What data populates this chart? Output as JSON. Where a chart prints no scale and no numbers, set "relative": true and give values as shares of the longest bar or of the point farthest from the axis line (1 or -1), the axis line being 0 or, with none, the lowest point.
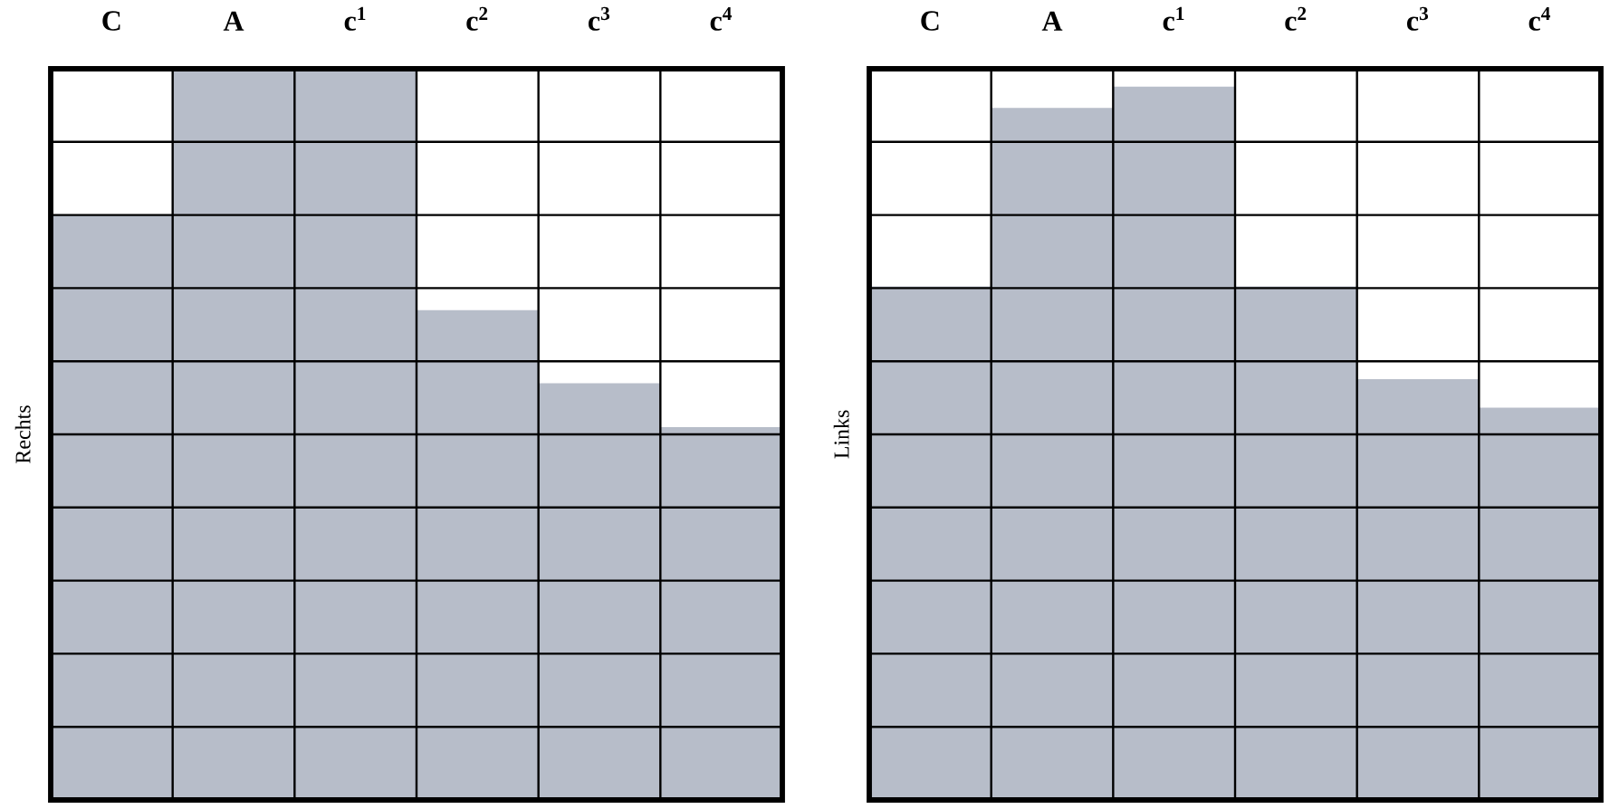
{
  "chart_data": [
    {
      "type": "bar",
      "ylabel": "Rechts",
      "categories": [
        "C",
        "A",
        "c$^{1}$",
        "c$^{2}$",
        "c$^{3}$",
        "c$^{4}$"
      ],
      "relative": true,
      "grid": true,
      "color": "#b7bdc9",
      "values": [
        0.8,
        1.0,
        1.0,
        0.67,
        0.57,
        0.51
      ]
    },
    {
      "type": "bar",
      "ylabel": "Links",
      "categories": [
        "C",
        "A",
        "c$^{1}$",
        "c$^{2}$",
        "c$^{3}$",
        "c$^{4}$"
      ],
      "relative": true,
      "grid": true,
      "color": "#b7bdc9",
      "values": [
        0.72,
        0.97,
        1.0,
        0.72,
        0.59,
        0.55
      ]
    }
  ]
}
